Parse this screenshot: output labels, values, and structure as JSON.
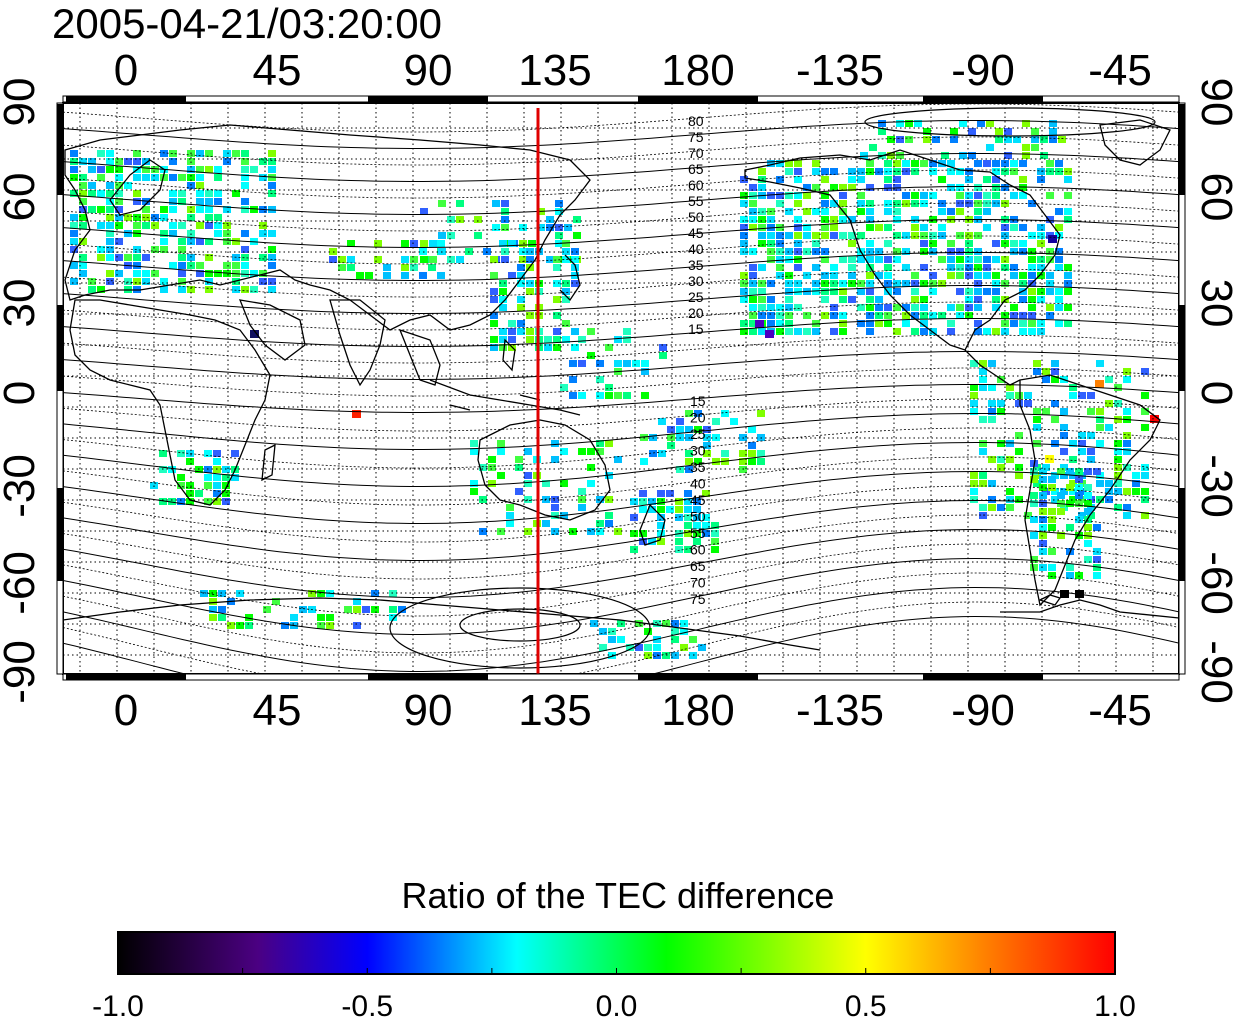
{
  "title": "2005-04-21/03:20:00",
  "top_axis_labels": [
    "0",
    "45",
    "90",
    "135",
    "180",
    "-135",
    "-90",
    "-45"
  ],
  "bottom_axis_labels": [
    "0",
    "45",
    "90",
    "135",
    "180",
    "-135",
    "-90",
    "-45"
  ],
  "left_axis_labels": [
    "90",
    "60",
    "30",
    "0",
    "-30",
    "-60",
    "-90"
  ],
  "right_axis_labels": [
    "90",
    "60",
    "30",
    "0",
    "-30",
    "-60",
    "-90"
  ],
  "magnetic_latitude_labels_north": [
    "80",
    "75",
    "70",
    "65",
    "60",
    "55",
    "50",
    "45",
    "40",
    "35",
    "30",
    "25",
    "20",
    "15"
  ],
  "magnetic_latitude_labels_south": [
    "15",
    "20",
    "25",
    "30",
    "35",
    "40",
    "45",
    "50",
    "55",
    "60",
    "65",
    "70",
    "75"
  ],
  "meridian_line": {
    "longitude": 130,
    "color": "#e00000"
  },
  "colorbar": {
    "title": "Ratio of the TEC difference",
    "tick_labels": [
      "-1.0",
      "-0.5",
      "0.0",
      "0.5",
      "1.0"
    ],
    "colors": [
      "#000000",
      "#4b0082",
      "#0000ff",
      "#00ffff",
      "#00ff00",
      "#ffff00",
      "#ff8000",
      "#ff0000"
    ]
  },
  "colors": {
    "coast": "#000000",
    "grid": "#000000",
    "contour": "#000000"
  }
}
